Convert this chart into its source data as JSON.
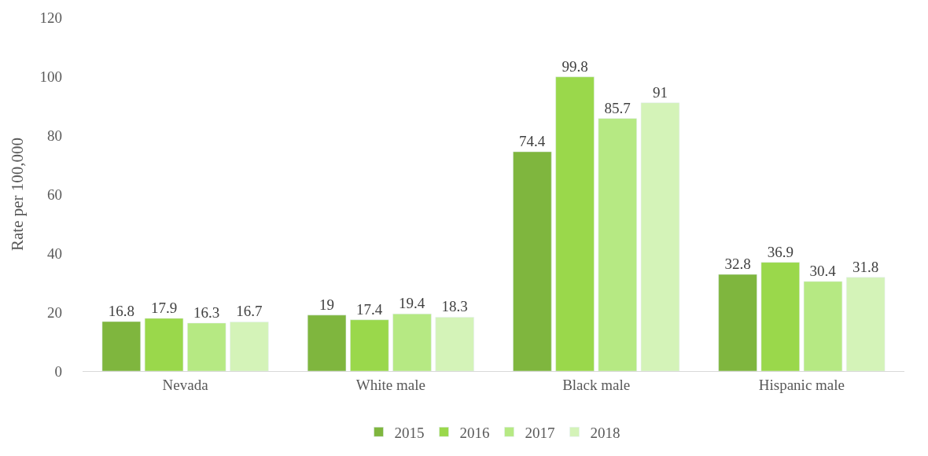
{
  "chart_data": {
    "type": "bar",
    "ylabel": "Rate per 100,000",
    "categories": [
      "Nevada",
      "White male",
      "Black male",
      "Hispanic male"
    ],
    "series": [
      {
        "name": "2015",
        "color": "#7fb63e",
        "values": [
          16.8,
          19,
          74.4,
          32.8
        ]
      },
      {
        "name": "2016",
        "color": "#9ad84b",
        "values": [
          17.9,
          17.4,
          99.8,
          36.9
        ]
      },
      {
        "name": "2017",
        "color": "#b6e983",
        "values": [
          16.3,
          19.4,
          85.7,
          30.4
        ]
      },
      {
        "name": "2018",
        "color": "#d4f3b8",
        "values": [
          16.7,
          18.3,
          91,
          31.8
        ]
      }
    ],
    "ylim": [
      0,
      120
    ],
    "yticks": [
      0,
      20,
      40,
      60,
      80,
      100,
      120
    ],
    "grid": false,
    "legend": "bottom",
    "data_labels": true
  }
}
